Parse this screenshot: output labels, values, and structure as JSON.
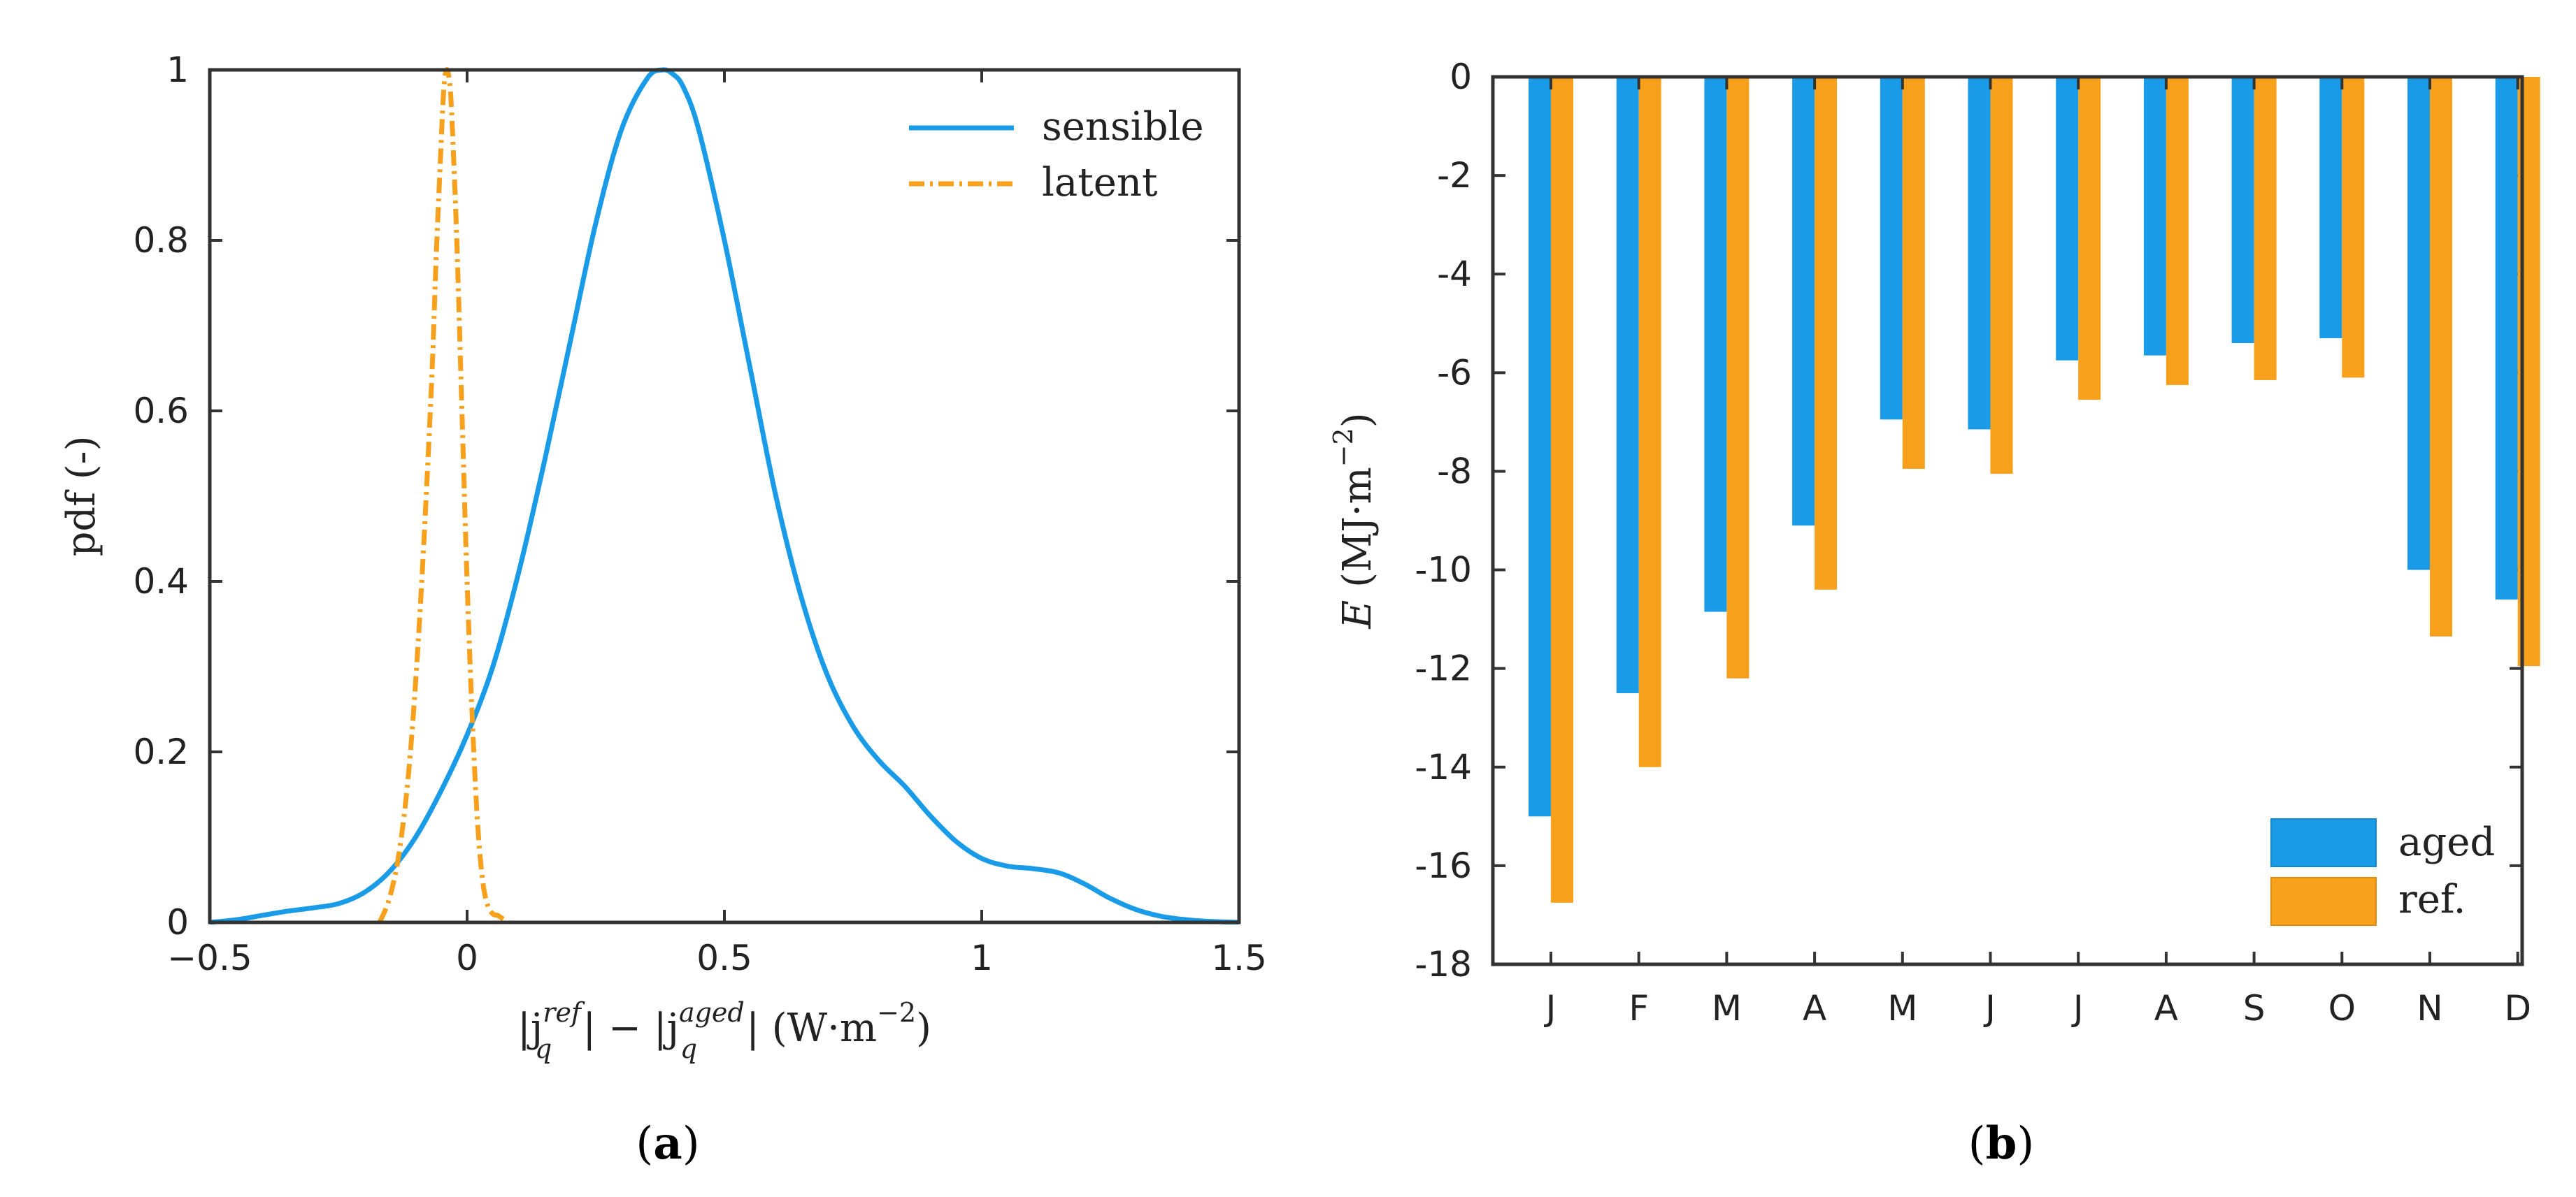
{
  "colors": {
    "blue": "#1a9be8",
    "orange": "#f7a01b",
    "axis": "#333333"
  },
  "chart_data": [
    {
      "id": "a",
      "type": "line",
      "panel_label": "a",
      "xlabel": "|j_q^ref| − |j_q^aged| (W·m⁻²)",
      "xlabel_parts": {
        "abs1": "|j",
        "sup1": "ref",
        "sub1": "q",
        "mid": "| − |j",
        "sup2": "aged",
        "sub2": "q",
        "end": "| (W·m",
        "sup3": "−2",
        "close": ")"
      },
      "ylabel": "pdf (-)",
      "xlim": [
        -0.5,
        1.5
      ],
      "ylim": [
        0,
        1
      ],
      "xticks": [
        -0.5,
        0,
        0.5,
        1,
        1.5
      ],
      "xtick_labels": [
        "−0.5",
        "0",
        "0.5",
        "1",
        "1.5"
      ],
      "yticks": [
        0,
        0.2,
        0.4,
        0.6,
        0.8,
        1
      ],
      "ytick_labels": [
        "0",
        "0.2",
        "0.4",
        "0.6",
        "0.8",
        "1"
      ],
      "legend_position": "top-right",
      "series": [
        {
          "name": "sensible",
          "style": "solid",
          "color": "#1a9be8",
          "x": [
            -0.5,
            -0.45,
            -0.4,
            -0.35,
            -0.3,
            -0.25,
            -0.2,
            -0.15,
            -0.1,
            -0.05,
            0,
            0.05,
            0.1,
            0.15,
            0.2,
            0.25,
            0.3,
            0.35,
            0.38,
            0.4,
            0.42,
            0.45,
            0.5,
            0.55,
            0.6,
            0.65,
            0.7,
            0.75,
            0.8,
            0.85,
            0.9,
            0.95,
            1.0,
            1.05,
            1.1,
            1.15,
            1.2,
            1.25,
            1.3,
            1.35,
            1.4,
            1.45,
            1.5
          ],
          "y": [
            0.0,
            0.003,
            0.008,
            0.013,
            0.017,
            0.022,
            0.035,
            0.06,
            0.1,
            0.155,
            0.22,
            0.3,
            0.41,
            0.54,
            0.68,
            0.82,
            0.93,
            0.99,
            1.0,
            0.995,
            0.98,
            0.93,
            0.8,
            0.65,
            0.5,
            0.38,
            0.29,
            0.23,
            0.19,
            0.16,
            0.125,
            0.095,
            0.075,
            0.066,
            0.063,
            0.058,
            0.045,
            0.028,
            0.015,
            0.007,
            0.003,
            0.001,
            0.0
          ]
        },
        {
          "name": "latent",
          "style": "dash-dot",
          "color": "#f7a01b",
          "x": [
            -0.17,
            -0.15,
            -0.13,
            -0.11,
            -0.09,
            -0.07,
            -0.06,
            -0.05,
            -0.045,
            -0.04,
            -0.035,
            -0.03,
            -0.02,
            -0.01,
            0.0,
            0.01,
            0.02,
            0.03,
            0.04,
            0.05,
            0.06,
            0.07,
            0.08
          ],
          "y": [
            0.0,
            0.03,
            0.09,
            0.2,
            0.38,
            0.62,
            0.78,
            0.92,
            0.98,
            1.0,
            0.99,
            0.95,
            0.8,
            0.6,
            0.4,
            0.24,
            0.12,
            0.05,
            0.02,
            0.01,
            0.008,
            0.004,
            0.0
          ]
        }
      ]
    },
    {
      "id": "b",
      "type": "bar",
      "panel_label": "b",
      "ylabel_italic": "E",
      "ylabel_units": "(MJ·m",
      "ylabel_sup": "−2",
      "ylabel_close": ")",
      "categories": [
        "J",
        "F",
        "M",
        "A",
        "M",
        "J",
        "J",
        "A",
        "S",
        "O",
        "N",
        "D"
      ],
      "ylim": [
        -18,
        0
      ],
      "yticks": [
        0,
        -2,
        -4,
        -6,
        -8,
        -10,
        -12,
        -14,
        -16,
        -18
      ],
      "ytick_labels": [
        "0",
        "-2",
        "-4",
        "-6",
        "-8",
        "-10",
        "-12",
        "-14",
        "-16",
        "-18"
      ],
      "legend_position": "bottom-right",
      "series": [
        {
          "name": "aged",
          "color": "#1a9be8",
          "values": [
            -15.0,
            -12.5,
            -10.85,
            -9.1,
            -6.95,
            -7.15,
            -5.75,
            -5.65,
            -5.4,
            -5.3,
            -10.0,
            -10.6
          ]
        },
        {
          "name": "ref.",
          "color": "#f7a01b",
          "values": [
            -16.75,
            -14.0,
            -12.2,
            -10.4,
            -7.95,
            -8.05,
            -6.55,
            -6.25,
            -6.15,
            -6.1,
            -11.35,
            -11.95
          ]
        }
      ]
    }
  ]
}
